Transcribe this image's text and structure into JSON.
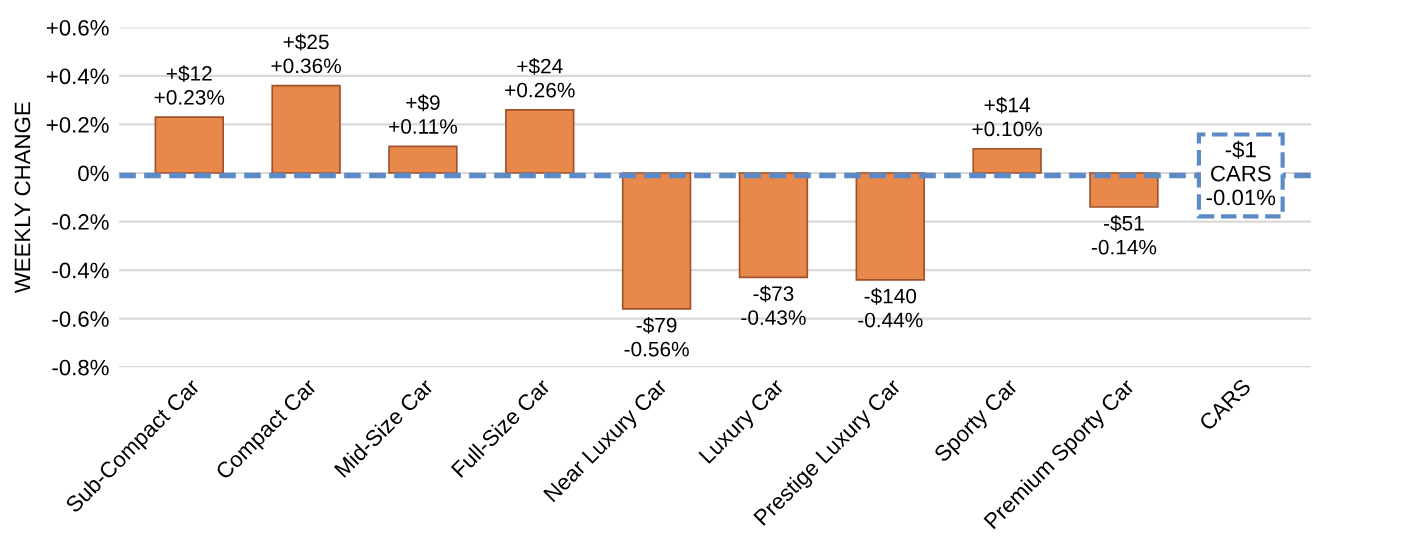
{
  "chart_data": {
    "type": "bar",
    "ylabel": "WEEKLY CHANGE",
    "categories": [
      "Sub-Compact Car",
      "Compact Car",
      "Mid-Size Car",
      "Full-Size Car",
      "Near Luxury Car",
      "Luxury Car",
      "Prestige Luxury Car",
      "Sporty Car",
      "Premium Sporty Car",
      "CARS"
    ],
    "values": [
      0.23,
      0.36,
      0.11,
      0.26,
      -0.56,
      -0.43,
      -0.44,
      0.1,
      -0.14,
      -0.01
    ],
    "value_labels": [
      "+$12\n+0.23%",
      "+$25\n+0.36%",
      "+$9\n+0.11%",
      "+$24\n+0.26%",
      "-$79\n-0.56%",
      "-$73\n-0.43%",
      "-$140\n-0.44%",
      "+$14\n+0.10%",
      "-$51\n-0.14%",
      "-$1\nCARS\n-0.01%"
    ],
    "color": "#e8884a",
    "ylim": [
      -0.8,
      0.6
    ],
    "yticks": [
      {
        "value": -0.8,
        "label": "-0.8%"
      },
      {
        "value": -0.6,
        "label": "-0.6%"
      },
      {
        "value": -0.4,
        "label": "-0.4%"
      },
      {
        "value": -0.2,
        "label": "-0.2%"
      },
      {
        "value": 0,
        "label": "0%"
      },
      {
        "value": 0.2,
        "label": "+0.2%"
      },
      {
        "value": 0.4,
        "label": "+0.4%"
      },
      {
        "value": 0.6,
        "label": "+0.6%"
      }
    ],
    "grid": "y",
    "ref_lines": [
      {
        "axis": "y",
        "value": -0.01,
        "label": null,
        "color": "#5b8ac6",
        "line_style": "dashed"
      }
    ]
  }
}
